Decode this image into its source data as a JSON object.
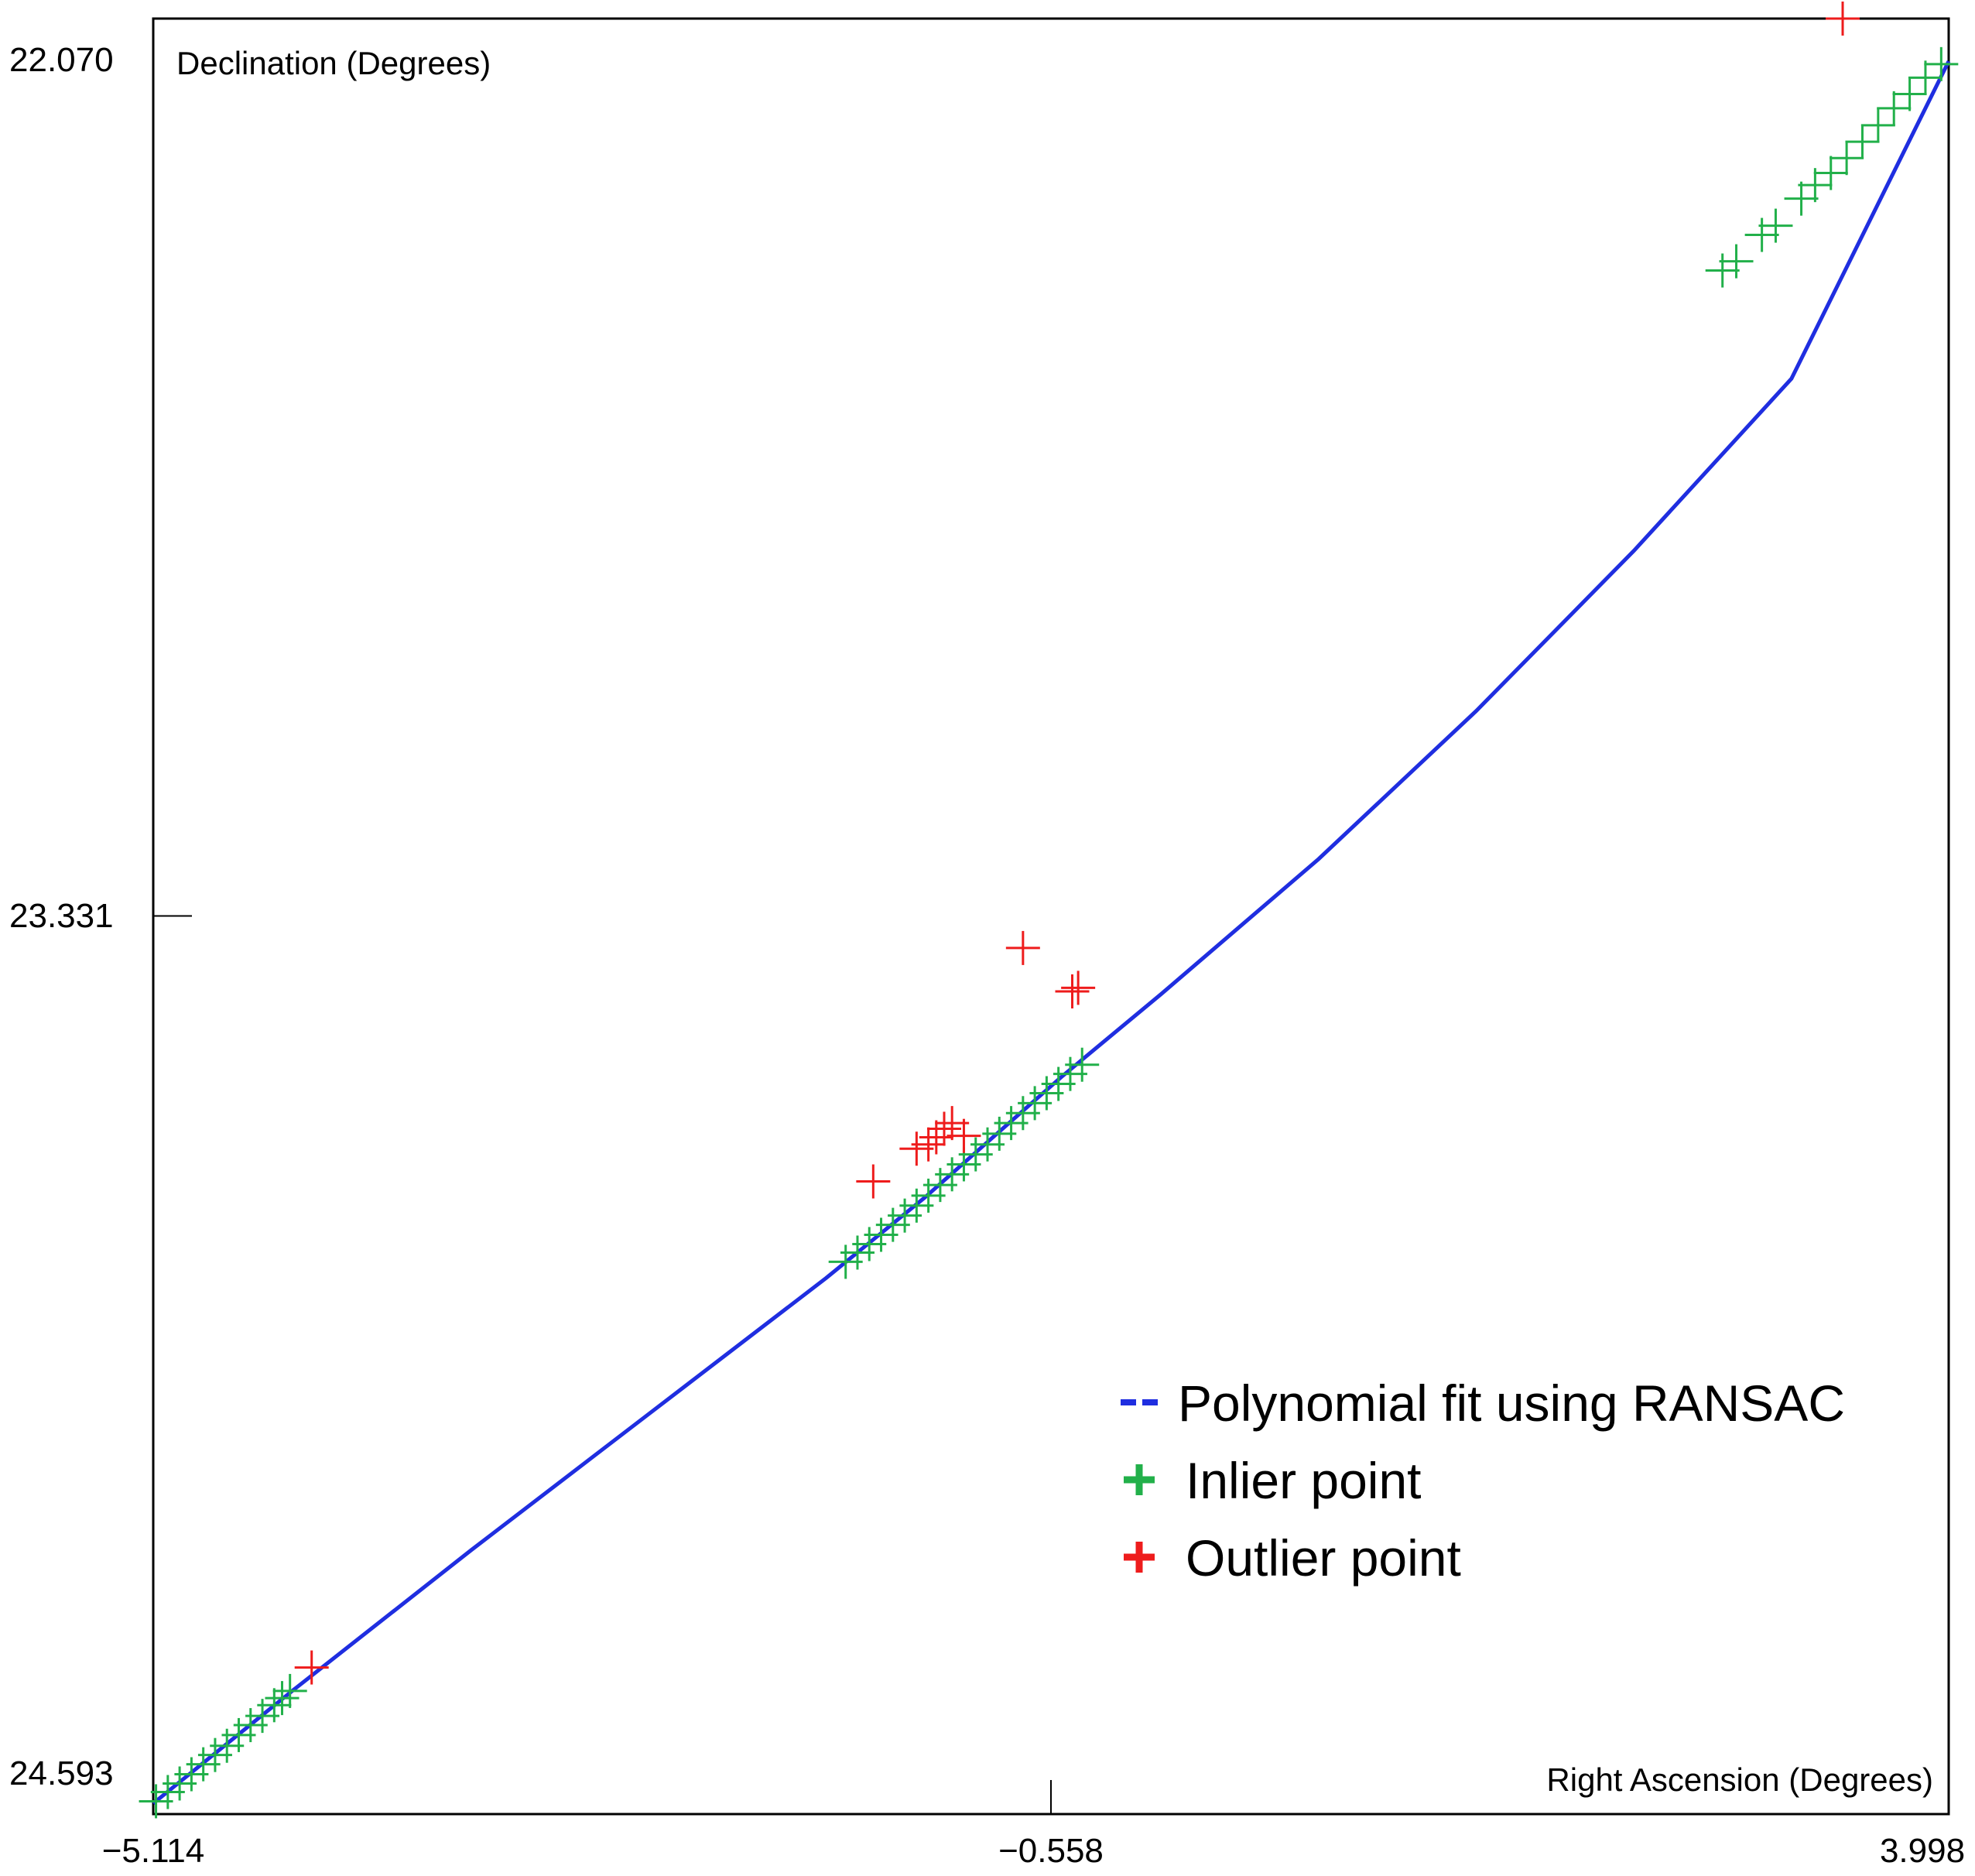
{
  "colors": {
    "fit": "#1f2ee0",
    "inlier": "#22b04a",
    "outlier": "#ee1c1c",
    "frame": "#000000"
  },
  "chart_data": {
    "type": "scatter",
    "xlabel": "Right Ascension (Degrees)",
    "ylabel": "Declination (Degrees)",
    "xlim": [
      -5.114,
      3.998
    ],
    "ylim": [
      22.07,
      24.593
    ],
    "y_inverted": true,
    "x_ticks": [
      "−5.114",
      "−0.558",
      "3.998"
    ],
    "x_tick_values": [
      -5.114,
      -0.558,
      3.998
    ],
    "y_ticks": [
      "22.070",
      "23.331",
      "24.593"
    ],
    "y_tick_values": [
      22.07,
      23.331,
      24.593
    ],
    "legend_position": "lower-right",
    "legend": [
      {
        "label": "Polynomial fit using RANSAC",
        "marker": "dashes",
        "color": "#1f2ee0"
      },
      {
        "label": "Inlier point",
        "marker": "plus",
        "color": "#22b04a"
      },
      {
        "label": "Outlier point",
        "marker": "plus",
        "color": "#ee1c1c"
      }
    ],
    "series": [
      {
        "name": "Polynomial fit using RANSAC",
        "kind": "line",
        "x": [
          -5.114,
          -4.4,
          -3.5,
          -2.6,
          -1.7,
          -1.2,
          -0.8,
          -0.5,
          0.0,
          0.8,
          1.6,
          2.4,
          3.2,
          3.998
        ],
        "y": [
          24.578,
          24.418,
          24.222,
          24.031,
          23.84,
          23.727,
          23.629,
          23.556,
          23.441,
          23.251,
          23.043,
          22.818,
          22.576,
          22.13
        ]
      },
      {
        "name": "Inlier point",
        "kind": "scatter",
        "x": [
          -5.1,
          -5.04,
          -4.98,
          -4.92,
          -4.86,
          -4.8,
          -4.74,
          -4.68,
          -4.62,
          -4.56,
          -4.5,
          -4.46,
          -4.42,
          -1.6,
          -1.54,
          -1.48,
          -1.42,
          -1.36,
          -1.3,
          -1.24,
          -1.18,
          -1.12,
          -1.06,
          -1.0,
          -0.94,
          -0.88,
          -0.82,
          -0.76,
          -0.7,
          -0.64,
          -0.58,
          -0.52,
          -0.46,
          -0.4,
          2.85,
          2.92,
          3.05,
          3.12,
          3.25,
          3.32,
          3.4,
          3.48,
          3.56,
          3.64,
          3.72,
          3.8,
          3.88,
          3.96
        ],
        "y": [
          24.575,
          24.562,
          24.55,
          24.537,
          24.523,
          24.51,
          24.497,
          24.482,
          24.468,
          24.455,
          24.44,
          24.43,
          24.42,
          23.817,
          23.804,
          23.792,
          23.779,
          23.765,
          23.752,
          23.738,
          23.724,
          23.709,
          23.694,
          23.68,
          23.666,
          23.652,
          23.637,
          23.622,
          23.608,
          23.594,
          23.58,
          23.567,
          23.553,
          23.54,
          22.424,
          22.411,
          22.374,
          22.361,
          22.323,
          22.304,
          22.287,
          22.266,
          22.243,
          22.22,
          22.196,
          22.176,
          22.153,
          22.134
        ]
      },
      {
        "name": "Outlier point",
        "kind": "scatter",
        "x": [
          -4.31,
          -1.46,
          -1.24,
          -1.18,
          -1.14,
          -1.1,
          -1.06,
          -1.0,
          -0.7,
          -0.45,
          -0.42,
          3.46
        ],
        "y": [
          24.387,
          23.704,
          23.658,
          23.652,
          23.642,
          23.63,
          23.622,
          23.64,
          23.376,
          23.437,
          23.432,
          22.07
        ]
      }
    ]
  }
}
